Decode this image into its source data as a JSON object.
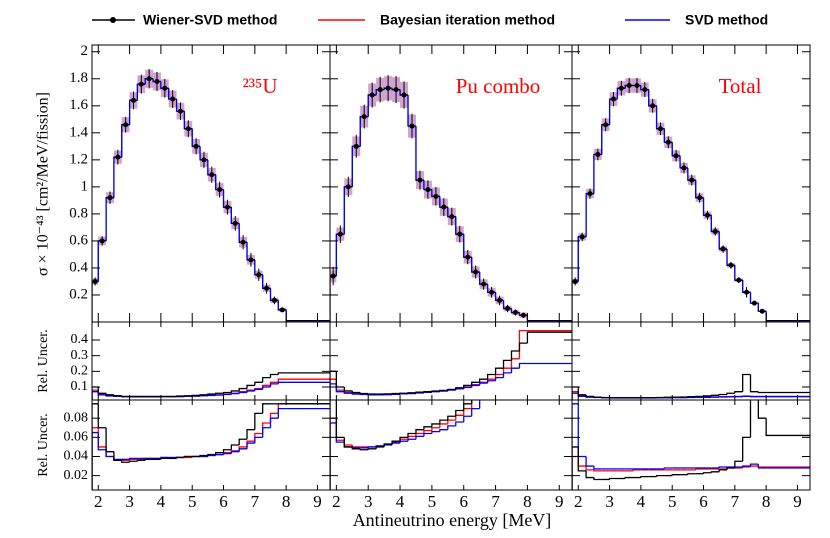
{
  "chart_data": {
    "type": "step",
    "legend": [
      {
        "name": "Wiener-SVD method",
        "color": "#000000"
      },
      {
        "name": "Bayesian iteration method",
        "color": "#ff0000"
      },
      {
        "name": "SVD method",
        "color": "#0000ff"
      }
    ],
    "x_label": "Antineutrino energy [MeV]",
    "y_label": "σ × 10⁻⁴³ [cm²/MeV/fission]",
    "y_label_mid": "Rel. Uncer.",
    "y_label_bottom": "Rel. Uncer.",
    "bins": [
      1.8,
      2,
      2.25,
      2.5,
      2.75,
      3,
      3.25,
      3.5,
      3.75,
      4,
      4.25,
      4.5,
      4.75,
      5,
      5.25,
      5.5,
      5.75,
      6,
      6.25,
      6.5,
      6.75,
      7,
      7.25,
      7.5,
      7.75,
      8,
      12
    ],
    "xlim": [
      1.8,
      9.4
    ],
    "xticks": [
      2,
      3,
      4,
      5,
      6,
      7,
      8,
      9
    ],
    "ylim": [
      0,
      2.05
    ],
    "yticks": [
      0.2,
      0.4,
      0.6,
      0.8,
      1,
      1.2,
      1.4,
      1.6,
      1.8,
      2
    ],
    "ylim_mid": [
      0.017,
      0.515
    ],
    "yticks_mid": [
      0.1,
      0.2,
      0.3,
      0.4
    ],
    "ylim_bottom": [
      0.005,
      0.099
    ],
    "yticks_bottom": [
      0.02,
      0.04,
      0.06,
      0.08
    ],
    "columns": [
      {
        "label": "²³⁵U",
        "spectrum": [
          0.3,
          0.6,
          0.92,
          1.22,
          1.46,
          1.64,
          1.76,
          1.8,
          1.78,
          1.73,
          1.65,
          1.56,
          1.43,
          1.3,
          1.2,
          1.09,
          0.98,
          0.85,
          0.73,
          0.59,
          0.46,
          0.35,
          0.25,
          0.16,
          0.09,
          0.01
        ],
        "uncertainty_1": [
          [
            0.1,
            0.06,
            0.05,
            0.045,
            0.04,
            0.04,
            0.04,
            0.04,
            0.04,
            0.04,
            0.04,
            0.042,
            0.044,
            0.046,
            0.05,
            0.055,
            0.06,
            0.065,
            0.075,
            0.09,
            0.11,
            0.13,
            0.16,
            0.18,
            0.19,
            0.19
          ],
          [
            0.08,
            0.055,
            0.045,
            0.04,
            0.038,
            0.037,
            0.037,
            0.037,
            0.037,
            0.038,
            0.038,
            0.039,
            0.04,
            0.042,
            0.044,
            0.047,
            0.05,
            0.055,
            0.06,
            0.07,
            0.08,
            0.09,
            0.11,
            0.13,
            0.15,
            0.15
          ],
          [
            0.07,
            0.05,
            0.043,
            0.04,
            0.038,
            0.037,
            0.037,
            0.037,
            0.037,
            0.038,
            0.038,
            0.039,
            0.04,
            0.042,
            0.044,
            0.046,
            0.048,
            0.052,
            0.058,
            0.065,
            0.075,
            0.085,
            0.1,
            0.12,
            0.13,
            0.13
          ]
        ],
        "uncertainty_2": [
          [
            0.095,
            0.07,
            0.045,
            0.036,
            0.034,
            0.035,
            0.036,
            0.037,
            0.037,
            0.038,
            0.038,
            0.039,
            0.04,
            0.04,
            0.041,
            0.042,
            0.044,
            0.047,
            0.052,
            0.058,
            0.068,
            0.085,
            0.095,
            0.095,
            0.095,
            0.095
          ],
          [
            0.07,
            0.05,
            0.04,
            0.036,
            0.036,
            0.037,
            0.037,
            0.038,
            0.038,
            0.038,
            0.038,
            0.039,
            0.039,
            0.04,
            0.04,
            0.041,
            0.042,
            0.044,
            0.046,
            0.05,
            0.056,
            0.064,
            0.075,
            0.085,
            0.095,
            0.095
          ],
          [
            0.065,
            0.047,
            0.04,
            0.037,
            0.037,
            0.038,
            0.038,
            0.038,
            0.038,
            0.039,
            0.039,
            0.039,
            0.04,
            0.04,
            0.04,
            0.041,
            0.042,
            0.043,
            0.045,
            0.048,
            0.054,
            0.06,
            0.07,
            0.08,
            0.09,
            0.09
          ]
        ]
      },
      {
        "label": "Pu combo",
        "spectrum": [
          0.34,
          0.65,
          1.0,
          1.3,
          1.52,
          1.68,
          1.72,
          1.73,
          1.72,
          1.68,
          1.45,
          1.05,
          0.98,
          0.93,
          0.85,
          0.78,
          0.65,
          0.48,
          0.37,
          0.28,
          0.22,
          0.16,
          0.1,
          0.07,
          0.05,
          0.01
        ],
        "uncertainty_1": [
          [
            0.2,
            0.1,
            0.075,
            0.065,
            0.058,
            0.055,
            0.055,
            0.056,
            0.058,
            0.06,
            0.063,
            0.067,
            0.07,
            0.074,
            0.078,
            0.085,
            0.095,
            0.11,
            0.13,
            0.15,
            0.18,
            0.22,
            0.27,
            0.33,
            0.38,
            0.45
          ],
          [
            0.15,
            0.08,
            0.065,
            0.058,
            0.054,
            0.052,
            0.052,
            0.053,
            0.055,
            0.058,
            0.06,
            0.064,
            0.068,
            0.072,
            0.076,
            0.082,
            0.09,
            0.1,
            0.115,
            0.13,
            0.15,
            0.18,
            0.22,
            0.28,
            0.46,
            0.46
          ],
          [
            0.12,
            0.07,
            0.06,
            0.055,
            0.052,
            0.05,
            0.05,
            0.051,
            0.053,
            0.056,
            0.058,
            0.062,
            0.066,
            0.07,
            0.074,
            0.08,
            0.088,
            0.097,
            0.11,
            0.125,
            0.14,
            0.16,
            0.19,
            0.22,
            0.25,
            0.25
          ]
        ],
        "uncertainty_2": [
          [
            0.1,
            0.06,
            0.05,
            0.048,
            0.047,
            0.048,
            0.05,
            0.053,
            0.056,
            0.06,
            0.064,
            0.068,
            0.071,
            0.074,
            0.078,
            0.082,
            0.088,
            0.095,
            0.1,
            0.1,
            0.1,
            0.1,
            0.1,
            0.1,
            0.1,
            0.1
          ],
          [
            0.08,
            0.057,
            0.052,
            0.05,
            0.05,
            0.05,
            0.051,
            0.053,
            0.055,
            0.058,
            0.061,
            0.064,
            0.067,
            0.07,
            0.074,
            0.078,
            0.083,
            0.09,
            0.1,
            0.1,
            0.1,
            0.1,
            0.1,
            0.1,
            0.1,
            0.1
          ],
          [
            0.075,
            0.055,
            0.05,
            0.049,
            0.049,
            0.05,
            0.051,
            0.052,
            0.054,
            0.056,
            0.058,
            0.061,
            0.064,
            0.066,
            0.068,
            0.072,
            0.076,
            0.082,
            0.09,
            0.1,
            0.1,
            0.1,
            0.1,
            0.1,
            0.1,
            0.1
          ]
        ]
      },
      {
        "label": "Total",
        "spectrum": [
          0.3,
          0.63,
          0.95,
          1.24,
          1.46,
          1.65,
          1.73,
          1.75,
          1.75,
          1.72,
          1.6,
          1.43,
          1.33,
          1.23,
          1.14,
          1.05,
          0.92,
          0.79,
          0.67,
          0.54,
          0.42,
          0.31,
          0.22,
          0.14,
          0.08,
          0.01
        ],
        "uncertainty_1": [
          [
            0.1,
            0.05,
            0.04,
            0.035,
            0.033,
            0.032,
            0.032,
            0.032,
            0.032,
            0.032,
            0.032,
            0.033,
            0.034,
            0.035,
            0.036,
            0.038,
            0.04,
            0.043,
            0.047,
            0.052,
            0.06,
            0.07,
            0.18,
            0.07,
            0.065,
            0.065
          ],
          [
            0.07,
            0.045,
            0.037,
            0.034,
            0.032,
            0.031,
            0.031,
            0.031,
            0.031,
            0.031,
            0.031,
            0.032,
            0.032,
            0.033,
            0.033,
            0.034,
            0.035,
            0.036,
            0.037,
            0.038,
            0.039,
            0.04,
            0.042,
            0.04,
            0.04,
            0.04
          ],
          [
            0.06,
            0.04,
            0.035,
            0.033,
            0.031,
            0.03,
            0.03,
            0.03,
            0.03,
            0.03,
            0.03,
            0.031,
            0.031,
            0.032,
            0.032,
            0.033,
            0.034,
            0.034,
            0.035,
            0.036,
            0.037,
            0.038,
            0.04,
            0.038,
            0.038,
            0.038
          ]
        ],
        "uncertainty_2": [
          [
            0.05,
            0.025,
            0.018,
            0.016,
            0.016,
            0.017,
            0.017,
            0.018,
            0.018,
            0.019,
            0.019,
            0.02,
            0.02,
            0.021,
            0.021,
            0.022,
            0.022,
            0.023,
            0.024,
            0.026,
            0.028,
            0.035,
            0.06,
            0.1,
            0.08,
            0.062
          ],
          [
            0.04,
            0.03,
            0.026,
            0.025,
            0.025,
            0.025,
            0.025,
            0.025,
            0.026,
            0.026,
            0.026,
            0.026,
            0.026,
            0.026,
            0.026,
            0.026,
            0.027,
            0.027,
            0.027,
            0.027,
            0.028,
            0.028,
            0.029,
            0.03,
            0.029,
            0.029
          ],
          [
            0.095,
            0.04,
            0.03,
            0.027,
            0.027,
            0.027,
            0.027,
            0.027,
            0.027,
            0.027,
            0.027,
            0.027,
            0.028,
            0.028,
            0.028,
            0.028,
            0.028,
            0.028,
            0.028,
            0.029,
            0.029,
            0.029,
            0.03,
            0.032,
            0.028,
            0.028
          ]
        ]
      }
    ]
  }
}
